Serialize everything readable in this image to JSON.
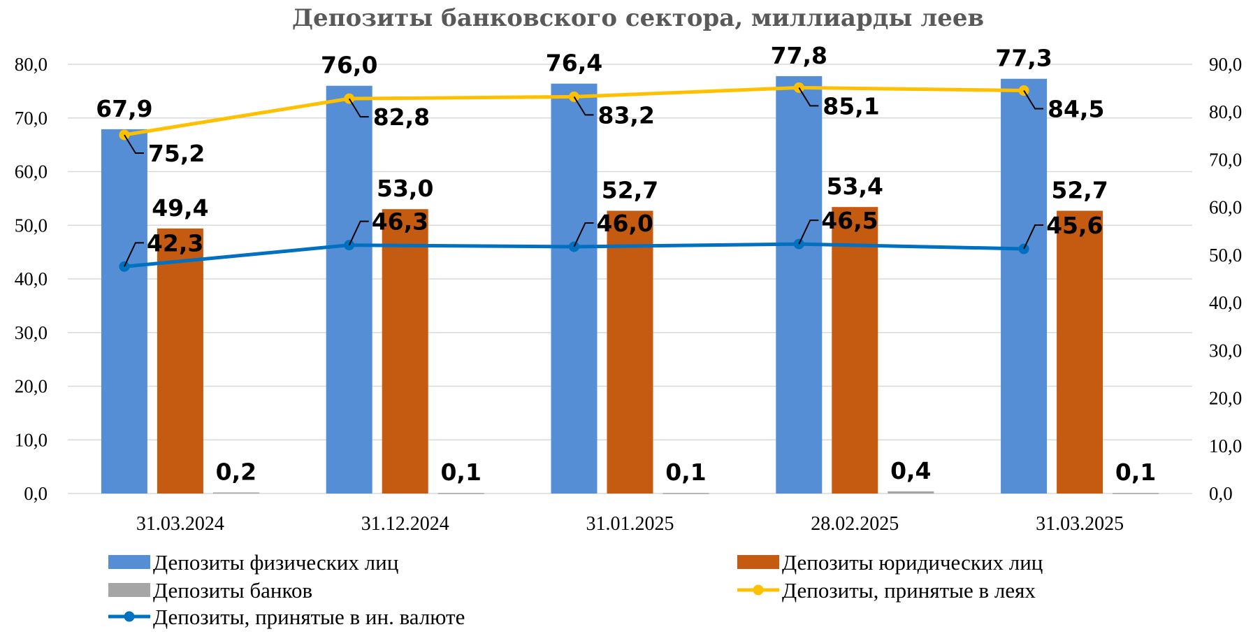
{
  "chart_data": {
    "type": "bar",
    "title": "Депозиты банковского сектора, миллиарды леев",
    "categories": [
      "31.03.2024",
      "31.12.2024",
      "31.01.2025",
      "28.02.2025",
      "31.03.2025"
    ],
    "y_left": {
      "ylim": [
        0,
        80
      ],
      "ticks": [
        "0,0",
        "10,0",
        "20,0",
        "30,0",
        "40,0",
        "50,0",
        "60,0",
        "70,0",
        "80,0"
      ]
    },
    "y_right": {
      "ylim": [
        0,
        90
      ],
      "ticks": [
        "0,0",
        "10,0",
        "20,0",
        "30,0",
        "40,0",
        "50,0",
        "60,0",
        "70,0",
        "80,0",
        "90,0"
      ]
    },
    "grid": true,
    "legend_position": "bottom",
    "series": [
      {
        "name": "Депозиты физических лиц",
        "kind": "bar",
        "axis": "left",
        "color": "#558ED5",
        "values": [
          67.9,
          76.0,
          76.4,
          77.8,
          77.3
        ],
        "labels": [
          "67,9",
          "76,0",
          "76,4",
          "77,8",
          "77,3"
        ]
      },
      {
        "name": "Депозиты юридических лиц",
        "kind": "bar",
        "axis": "left",
        "color": "#C55A11",
        "values": [
          49.4,
          53.0,
          52.7,
          53.4,
          52.7
        ],
        "labels": [
          "49,4",
          "53,0",
          "52,7",
          "53,4",
          "52,7"
        ]
      },
      {
        "name": "Депозиты банков",
        "kind": "bar",
        "axis": "left",
        "color": "#A5A5A5",
        "values": [
          0.2,
          0.1,
          0.1,
          0.4,
          0.1
        ],
        "labels": [
          "0,2",
          "0,1",
          "0,1",
          "0,4",
          "0,1"
        ]
      },
      {
        "name": "Депозиты, принятые в леях",
        "kind": "line",
        "axis": "right",
        "color": "#FFC000",
        "values": [
          75.2,
          82.8,
          83.2,
          85.1,
          84.5
        ],
        "labels": [
          "75,2",
          "82,8",
          "83,2",
          "85,1",
          "84,5"
        ]
      },
      {
        "name": "Депозиты, принятые в ин. валюте",
        "kind": "line",
        "axis": "left",
        "color": "#0070C0",
        "values": [
          42.3,
          46.3,
          46.0,
          46.5,
          45.6
        ],
        "labels": [
          "42,3",
          "46,3",
          "46,0",
          "46,5",
          "45,6"
        ]
      }
    ]
  }
}
